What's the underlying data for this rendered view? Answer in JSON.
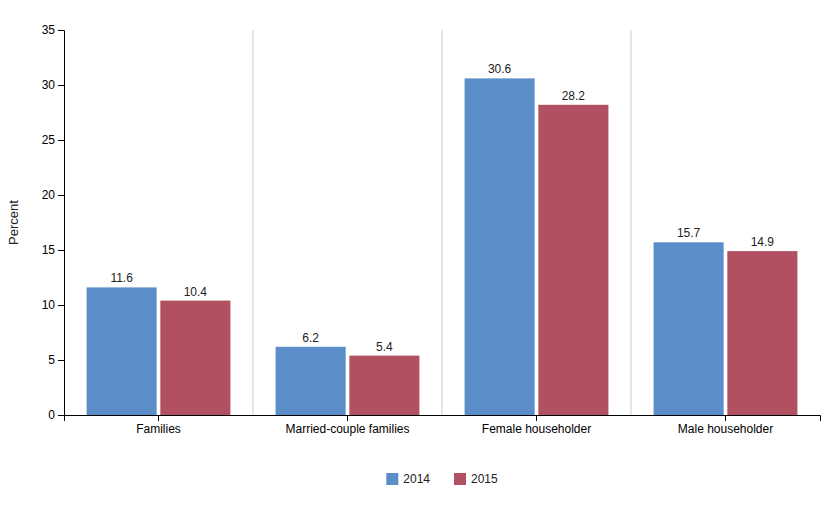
{
  "chart_data": {
    "type": "bar",
    "categories": [
      "Families",
      "Married-couple families",
      "Female householder",
      "Male householder"
    ],
    "series": [
      {
        "name": "2014",
        "color": "#5B8DC8",
        "values": [
          11.6,
          6.2,
          30.6,
          15.7
        ]
      },
      {
        "name": "2015",
        "color": "#B05060",
        "values": [
          10.4,
          5.4,
          28.2,
          14.9
        ]
      }
    ],
    "ylabel": "Percent",
    "ylim": [
      0,
      35
    ],
    "yticks": [
      0,
      5,
      10,
      15,
      20,
      25,
      30,
      35
    ],
    "data_labels": true,
    "legend": "bottom",
    "grid": false
  }
}
